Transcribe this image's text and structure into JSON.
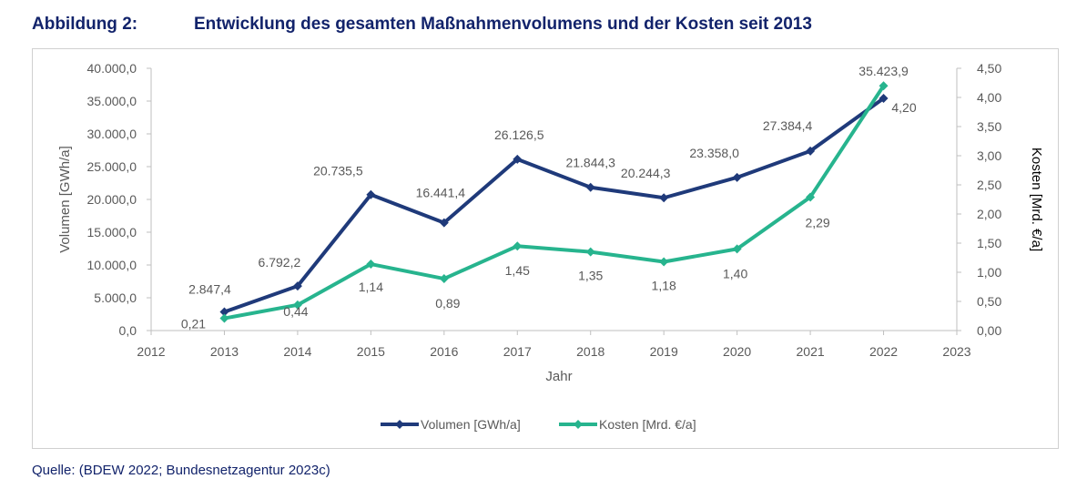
{
  "header": {
    "figure_number": "Abbildung 2:",
    "figure_title": "Entwicklung des gesamten Maßnahmenvolumens und der Kosten seit 2013"
  },
  "source": "Quelle: (BDEW 2022; Bundesnetzagentur 2023c)",
  "colors": {
    "volumen": "#1f3a7a",
    "kosten": "#27b48e",
    "axis": "#bfbfbf",
    "text": "#595959",
    "title": "#12236b"
  },
  "chart_data": {
    "type": "line",
    "xlabel": "Jahr",
    "ylabel_left": "Volumen [GWh/a]",
    "ylabel_right": "Kosten [Mrd. €/a]",
    "xlim": [
      2012,
      2023
    ],
    "x_ticks": [
      2012,
      2013,
      2014,
      2015,
      2016,
      2017,
      2018,
      2019,
      2020,
      2021,
      2022,
      2023
    ],
    "x_tick_labels": [
      "2012",
      "2013",
      "2014",
      "2015",
      "2016",
      "2017",
      "2018",
      "2019",
      "2020",
      "2021",
      "2022",
      "2023"
    ],
    "ylim_left": [
      0,
      40000
    ],
    "y_left_ticks": [
      0,
      5000,
      10000,
      15000,
      20000,
      25000,
      30000,
      35000,
      40000
    ],
    "y_left_tick_labels": [
      "0,0",
      "5.000,0",
      "10.000,0",
      "15.000,0",
      "20.000,0",
      "25.000,0",
      "30.000,0",
      "35.000,0",
      "40.000,0"
    ],
    "ylim_right": [
      0,
      4.5
    ],
    "y_right_ticks": [
      0,
      0.5,
      1,
      1.5,
      2,
      2.5,
      3,
      3.5,
      4,
      4.5
    ],
    "y_right_tick_labels": [
      "0,00",
      "0,50",
      "1,00",
      "1,50",
      "2,00",
      "2,50",
      "3,00",
      "3,50",
      "4,00",
      "4,50"
    ],
    "x": [
      2013,
      2014,
      2015,
      2016,
      2017,
      2018,
      2019,
      2020,
      2021,
      2022
    ],
    "series": [
      {
        "name": "Volumen [GWh/a]",
        "axis": "left",
        "values": [
          2847.4,
          6792.2,
          20735.5,
          16441.4,
          26126.5,
          21844.3,
          20244.3,
          23358.0,
          27384.4,
          35423.9
        ],
        "labels": [
          "2.847,4",
          "6.792,2",
          "20.735,5",
          "16.441,4",
          "26.126,5",
          "21.844,3",
          "20.244,3",
          "23.358,0",
          "27.384,4",
          "35.423,9"
        ]
      },
      {
        "name": "Kosten [Mrd. €/a]",
        "axis": "right",
        "values": [
          0.21,
          0.44,
          1.14,
          0.89,
          1.45,
          1.35,
          1.18,
          1.4,
          2.29,
          4.2
        ],
        "labels": [
          "0,21",
          "0,44",
          "1,14",
          "0,89",
          "1,45",
          "1,35",
          "1,18",
          "1,40",
          "2,29",
          "4,20"
        ]
      }
    ],
    "legend": {
      "position": "bottom-center"
    }
  }
}
